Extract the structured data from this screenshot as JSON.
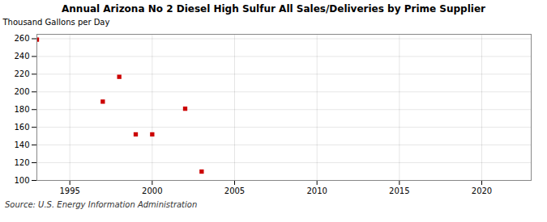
{
  "chart_data": {
    "type": "scatter",
    "title": "Annual Arizona No 2 Diesel High Sulfur All Sales/Deliveries by Prime Supplier",
    "ylabel": "Thousand Gallons per Day",
    "source": "Source: U.S. Energy Information Administration",
    "x": [
      1993,
      1997,
      1998,
      1999,
      2000,
      2002,
      2003
    ],
    "values": [
      259,
      189,
      217,
      152,
      152,
      181,
      110
    ],
    "color": "#cc0000",
    "marker": "square",
    "xlim": [
      1993,
      2023
    ],
    "ylim": [
      100,
      265
    ],
    "xticks": [
      1995,
      2000,
      2005,
      2010,
      2015,
      2020
    ],
    "yticks": [
      100,
      120,
      140,
      160,
      180,
      200,
      220,
      240,
      260
    ],
    "grid": true
  }
}
